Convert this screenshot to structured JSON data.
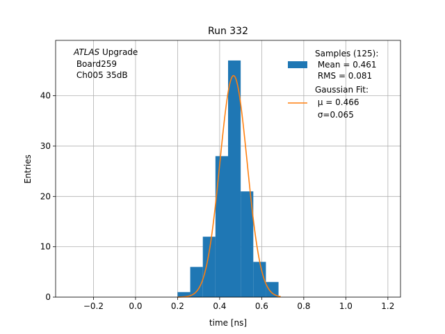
{
  "chart_data": {
    "type": "bar",
    "title": "Run 332",
    "xlabel": "time [ns]",
    "ylabel": "Entries",
    "xlim": [
      -0.38,
      1.26
    ],
    "ylim": [
      0,
      51
    ],
    "xticks": [
      -0.2,
      0.0,
      0.2,
      0.4,
      0.6,
      0.8,
      1.0,
      1.2
    ],
    "xtick_labels": [
      "−0.2",
      "0.0",
      "0.2",
      "0.4",
      "0.6",
      "0.8",
      "1.0",
      "1.2"
    ],
    "yticks": [
      0,
      10,
      20,
      30,
      40
    ],
    "ytick_labels": [
      "0",
      "10",
      "20",
      "30",
      "40"
    ],
    "grid": true,
    "annotation": {
      "italic": "ATLAS",
      "rest": " Upgrade",
      "line2": " Board259",
      "line3": " Ch005 35dB"
    },
    "histogram": {
      "color": "#1f77b4",
      "bin_width": 0.06,
      "bin_edges_start": [
        0.2,
        0.26,
        0.32,
        0.38,
        0.44,
        0.5,
        0.56,
        0.62
      ],
      "counts": [
        1,
        6,
        12,
        28,
        47,
        21,
        7,
        3
      ]
    },
    "fit": {
      "color": "#ff7f0e",
      "amplitude": 44,
      "mu": 0.466,
      "sigma": 0.065,
      "x_range": [
        0.2,
        0.69
      ]
    },
    "legend": {
      "placement": "top-right",
      "samples_line1": "Samples (125):",
      "samples_line2": " Mean = 0.461",
      "samples_line3": " RMS = 0.081",
      "fit_line1": "Gaussian Fit:",
      "fit_line2": " μ = 0.466",
      "fit_line3": " σ=0.065"
    }
  }
}
